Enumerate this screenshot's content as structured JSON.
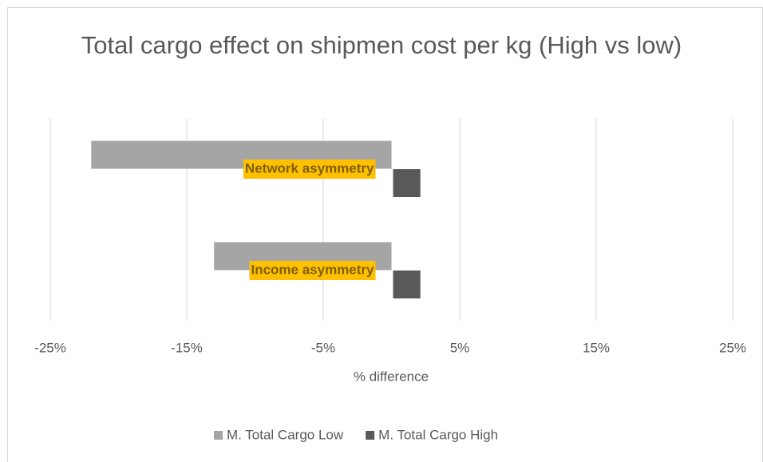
{
  "chart_data": {
    "type": "hbar",
    "title": "Total cargo effect on shipmen cost per kg (High vs low)",
    "categories": [
      "Network asymmetry",
      "Income asymmetry"
    ],
    "series": [
      {
        "name": "M. Total Cargo Low",
        "color": "#a5a5a5",
        "values": [
          -22,
          -13
        ]
      },
      {
        "name": "M. Total Cargo High",
        "color": "#595959",
        "values": [
          2,
          2
        ]
      }
    ],
    "xlabel": "% difference",
    "xlim": [
      -25,
      25
    ],
    "xticks": [
      {
        "value": -25,
        "label": "-25%"
      },
      {
        "value": -15,
        "label": "-15%"
      },
      {
        "value": -5,
        "label": "-5%"
      },
      {
        "value": 5,
        "label": "5%"
      },
      {
        "value": 15,
        "label": "15%"
      },
      {
        "value": 25,
        "label": "25%"
      }
    ],
    "grid": true,
    "legend": "bottom"
  }
}
